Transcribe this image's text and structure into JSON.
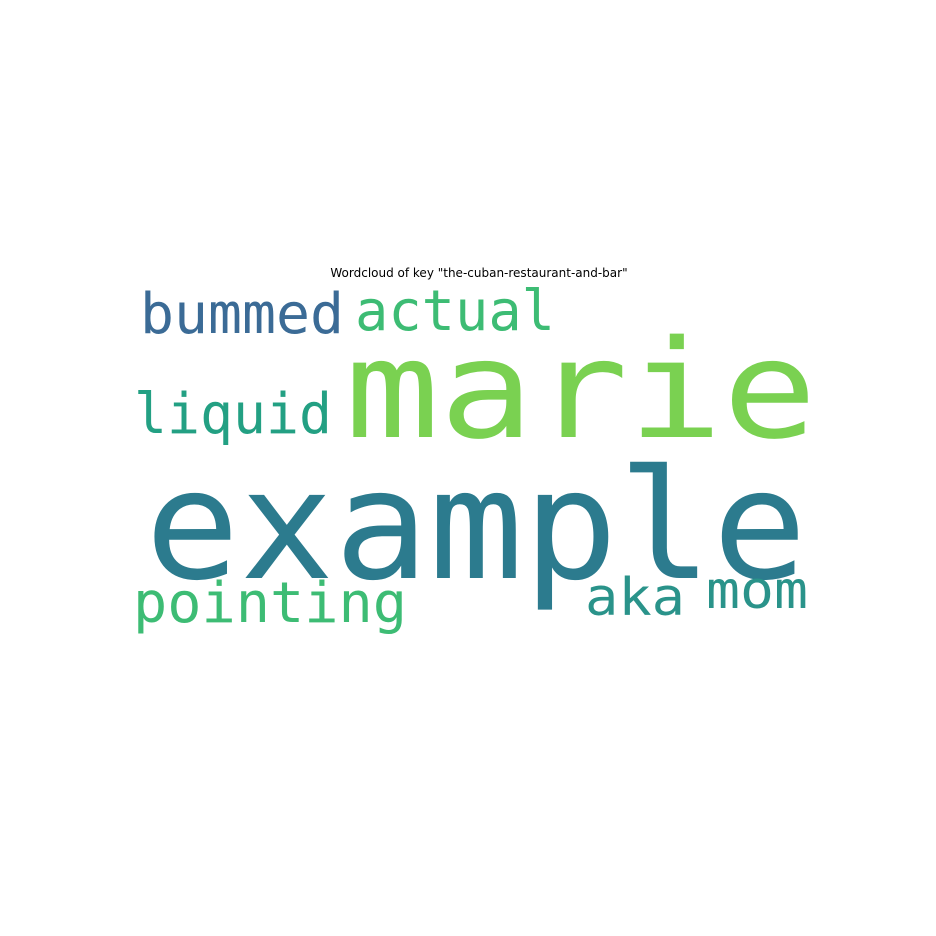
{
  "chart_data": {
    "type": "wordcloud",
    "title": "Wordcloud of key \"the-cuban-restaurant-and-bar\"",
    "background": "#ffffff",
    "words": [
      {
        "text": "marie",
        "weight": 1.0,
        "color": "#7ad151"
      },
      {
        "text": "example",
        "weight": 1.0,
        "color": "#2c7b8e"
      },
      {
        "text": "pointing",
        "weight": 0.5,
        "color": "#3dbc74"
      },
      {
        "text": "bummed",
        "weight": 0.5,
        "color": "#3b6b96"
      },
      {
        "text": "actual",
        "weight": 0.5,
        "color": "#3dbc74"
      },
      {
        "text": "liquid",
        "weight": 0.5,
        "color": "#23a083"
      },
      {
        "text": "aka",
        "weight": 0.5,
        "color": "#2a938a"
      },
      {
        "text": "mom",
        "weight": 0.5,
        "color": "#2a938a"
      }
    ]
  }
}
